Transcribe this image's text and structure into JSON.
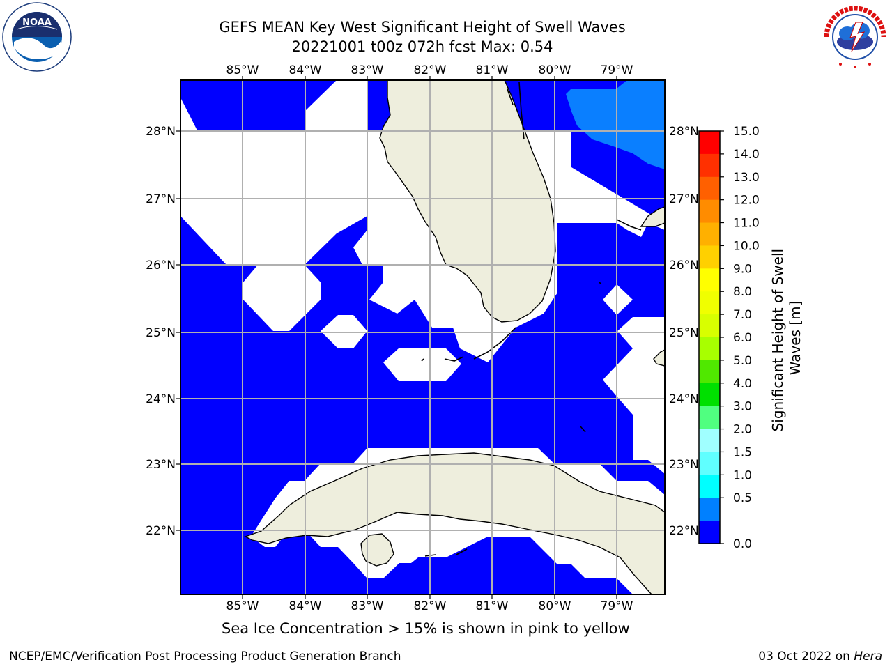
{
  "title": {
    "line1": "GEFS MEAN Key West Significant Height of Swell Waves",
    "line2": "20221001 t00z 072h fcst   Max: 0.54"
  },
  "map": {
    "lon_labels": [
      "85°W",
      "84°W",
      "83°W",
      "82°W",
      "81°W",
      "80°W",
      "79°W"
    ],
    "lat_labels": [
      "28°N",
      "27°N",
      "26°N",
      "25°N",
      "24°N",
      "23°N",
      "22°N"
    ],
    "colors": {
      "water_low": "#0000ff",
      "water_mid": "#0a7fff",
      "land": "#eeeedd",
      "no_data": "#ffffff",
      "grid": "#b0b0b0"
    }
  },
  "colorbar": {
    "label_line1": "Significant Height of Swell",
    "label_line2": "Waves [m]",
    "ticks": [
      "15.0",
      "14.0",
      "13.0",
      "12.0",
      "11.0",
      "10.0",
      "9.0",
      "8.0",
      "7.0",
      "6.0",
      "5.0",
      "4.0",
      "3.0",
      "2.0",
      "1.5",
      "1.0",
      "0.5",
      "0.0"
    ],
    "colors": [
      "#ff0000",
      "#ff3000",
      "#ff6000",
      "#ff8c00",
      "#ffb000",
      "#ffd000",
      "#ffff00",
      "#f0ff00",
      "#d8ff00",
      "#a8ff00",
      "#50e800",
      "#00e000",
      "#50ff80",
      "#a0ffff",
      "#60ffff",
      "#00ffff",
      "#0080ff",
      "#0000ff"
    ]
  },
  "note": "Sea Ice Concentration > 15% is shown in pink to yellow",
  "footer": {
    "left": "NCEP/EMC/Verification Post Processing Product Generation Branch",
    "date": "03 Oct 2022 on ",
    "host": "Hera"
  }
}
